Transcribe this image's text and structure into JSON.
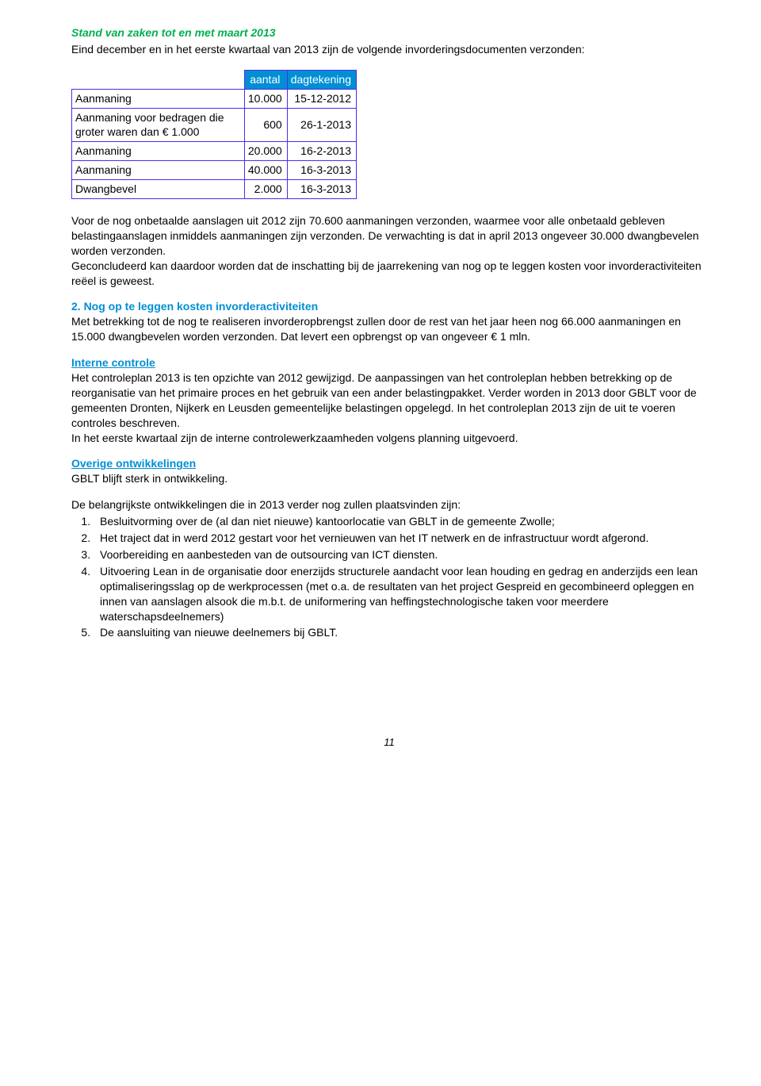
{
  "colors": {
    "green": "#00b050",
    "blue_header": "#008fd5",
    "table_border": "#4b2ee6",
    "text": "#000000",
    "background": "#ffffff"
  },
  "title": "Stand van zaken tot en met maart 2013",
  "intro": "Eind december en in het eerste kwartaal van 2013 zijn de volgende invorderingsdocumenten verzonden:",
  "table": {
    "headers": {
      "col2": "aantal",
      "col3": "dagtekening"
    },
    "rows": [
      {
        "label": "Aanmaning",
        "aantal": "10.000",
        "date": "15-12-2012"
      },
      {
        "label": "Aanmaning voor bedragen die groter waren dan € 1.000",
        "aantal": "600",
        "date": "26-1-2013"
      },
      {
        "label": "Aanmaning",
        "aantal": "20.000",
        "date": "16-2-2013"
      },
      {
        "label": "Aanmaning",
        "aantal": "40.000",
        "date": "16-3-2013"
      },
      {
        "label": "Dwangbevel",
        "aantal": "2.000",
        "date": "16-3-2013"
      }
    ]
  },
  "para1": "Voor de nog onbetaalde aanslagen uit 2012 zijn 70.600 aanmaningen verzonden, waarmee voor alle onbetaald gebleven belastingaanslagen inmiddels aanmaningen zijn verzonden. De verwachting is dat in april 2013 ongeveer 30.000 dwangbevelen worden verzonden.",
  "para1b": "Geconcludeerd kan daardoor worden dat de inschatting bij de jaarrekening van nog op te leggen kosten voor invorderactiviteiten reëel is geweest.",
  "sec2_title": "2. Nog op te leggen kosten invorderactiviteiten",
  "sec2_body": "Met betrekking tot de nog te realiseren invorderopbrengst zullen door de rest van het jaar heen nog 66.000 aanmaningen en 15.000 dwangbevelen worden verzonden. Dat levert een opbrengst op van ongeveer € 1 mln.",
  "interne_title": "Interne controle",
  "interne_body1": "Het controleplan 2013 is ten opzichte van 2012 gewijzigd. De aanpassingen van het controleplan hebben betrekking op de reorganisatie van het primaire proces en het gebruik van een ander belastingpakket. Verder worden in 2013 door GBLT voor de gemeenten Dronten, Nijkerk en Leusden gemeentelijke belastingen opgelegd. In het controleplan 2013 zijn de uit te voeren controles beschreven.",
  "interne_body2": "In het eerste kwartaal zijn de interne controlewerkzaamheden volgens planning uitgevoerd.",
  "overige_title": "Overige ontwikkelingen",
  "overige_intro": "GBLT blijft sterk in ontwikkeling.",
  "overige_lead": "De belangrijkste ontwikkelingen die in 2013 verder nog zullen plaatsvinden zijn:",
  "dev_items": [
    "Besluitvorming over de (al dan niet nieuwe) kantoorlocatie van GBLT in de gemeente Zwolle;",
    "Het traject dat in werd 2012 gestart voor het vernieuwen van het IT netwerk en de infrastructuur wordt afgerond.",
    "Voorbereiding en aanbesteden van de outsourcing van ICT diensten.",
    "Uitvoering Lean in de organisatie door enerzijds structurele aandacht voor lean houding en gedrag en anderzijds een lean optimaliseringsslag op de werkprocessen (met o.a. de resultaten van het project Gespreid en gecombineerd opleggen en innen van aanslagen alsook die m.b.t. de uniformering van heffingstechnologische taken voor meerdere waterschapsdeelnemers)",
    "De aansluiting van nieuwe deelnemers bij GBLT."
  ],
  "page_number": "11"
}
